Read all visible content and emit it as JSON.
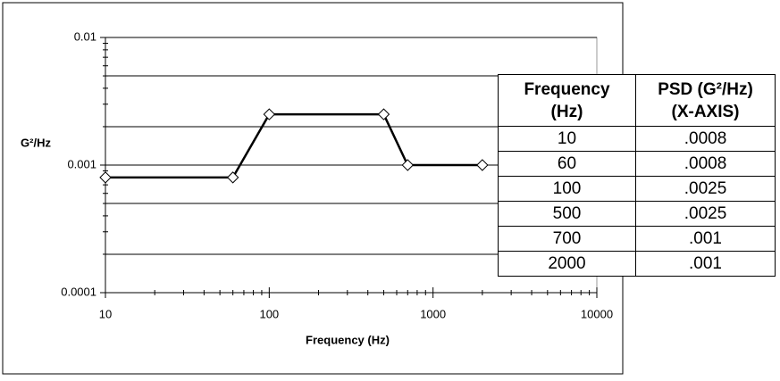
{
  "chart_data": {
    "type": "line",
    "xlabel": "Frequency (Hz)",
    "ylabel": "G²/Hz",
    "x": [
      10,
      60,
      100,
      500,
      700,
      2000
    ],
    "series": [
      {
        "name": "PSD (X-AXIS)",
        "color": "#000000",
        "values": [
          0.0008,
          0.0008,
          0.0025,
          0.0025,
          0.001,
          0.001
        ]
      }
    ],
    "xlim": [
      10,
      10000
    ],
    "ylim": [
      0.0001,
      0.01
    ],
    "xlog": true,
    "ylog": true,
    "xticks": [
      10,
      100,
      1000,
      10000
    ],
    "yticks": [
      0.0001,
      0.001,
      0.01
    ],
    "ygrid": [
      0.0002,
      0.0005,
      0.001,
      0.002,
      0.005,
      0.01
    ]
  },
  "table": {
    "header": [
      "Frequency\n(Hz)",
      "PSD (G²/Hz)\n(X-AXIS)"
    ],
    "rows": [
      [
        "10",
        ".0008"
      ],
      [
        "60",
        ".0008"
      ],
      [
        "100",
        ".0025"
      ],
      [
        "500",
        ".0025"
      ],
      [
        "700",
        ".001"
      ],
      [
        "2000",
        ".001"
      ]
    ]
  }
}
